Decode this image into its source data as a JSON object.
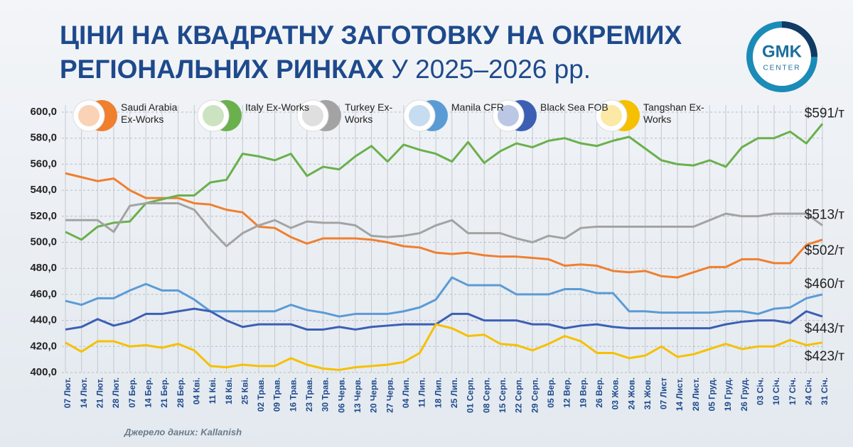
{
  "chart_data": {
    "type": "line",
    "title": "ЦІНИ НА КВАДРАТНУ ЗАГОТОВКУ НА ОКРЕМИХ РЕГІОНАЛЬНИХ РИНКАХ",
    "subtitle": "У 2025–2026 рр.",
    "source": "Джерело даних: Kallanish",
    "logo": {
      "top": "GMK",
      "bottom": "CENTER"
    },
    "categories": [
      "07 Лют.",
      "14 Лют.",
      "21 Лют.",
      "28 Лют.",
      "07 Бер.",
      "14 Бер.",
      "21 Бер.",
      "28 Бер.",
      "04 Кві.",
      "11 Кві.",
      "18 Кві.",
      "25 Кві.",
      "02 Трав.",
      "09 Трав.",
      "16 Трав.",
      "23 Трав.",
      "30 Трав.",
      "06 Черв.",
      "13 Черв.",
      "20 Черв.",
      "27 Черв.",
      "04 Лип.",
      "11 Лип.",
      "18 Лип.",
      "25 Лип.",
      "01 Серп.",
      "08 Серп.",
      "15 Серп.",
      "22 Серп.",
      "29 Серп.",
      "05 Вер.",
      "12 Вер.",
      "19 Вер.",
      "26 Вер.",
      "03 Жов.",
      "24 Жов.",
      "31 Жов.",
      "07 Лист",
      "14 Лист.",
      "28 Лист.",
      "05 Груд.",
      "19 Груд.",
      "26 Груд.",
      "03 Січ.",
      "10 Січ.",
      "17 Січ.",
      "24 Січ.",
      "31 Січ."
    ],
    "ylim": [
      400,
      600
    ],
    "yticks": [
      {
        "value": 400,
        "label": "400,0"
      },
      {
        "value": 420,
        "label": "420,0"
      },
      {
        "value": 440,
        "label": "440,0"
      },
      {
        "value": 460,
        "label": "460,0"
      },
      {
        "value": 480,
        "label": "480,0"
      },
      {
        "value": 500,
        "label": "500,0"
      },
      {
        "value": 520,
        "label": "520,0"
      },
      {
        "value": 540,
        "label": "540,0"
      },
      {
        "value": 560,
        "label": "560,0"
      },
      {
        "value": 580,
        "label": "580,0"
      },
      {
        "value": 600,
        "label": "600,0"
      }
    ],
    "grid": true,
    "series": [
      {
        "name": "Saudi Arabia Ex-Works",
        "color": "#f07f2e",
        "values": [
          553,
          550,
          547,
          549,
          540,
          534,
          534,
          534,
          530,
          529,
          525,
          523,
          512,
          511,
          504,
          499,
          503,
          503,
          503,
          502,
          500,
          497,
          496,
          492,
          491,
          492,
          490,
          489,
          489,
          488,
          487,
          482,
          483,
          482,
          478,
          477,
          478,
          474,
          473,
          477,
          481,
          481,
          487,
          487,
          484,
          484,
          498,
          502
        ],
        "value_labels": [
          null,
          null,
          null,
          null,
          null,
          null,
          null,
          null,
          null,
          null,
          null,
          null,
          null,
          null,
          null,
          null,
          null,
          null,
          null,
          null,
          null,
          null,
          null,
          null,
          null,
          null,
          null,
          null,
          null,
          null,
          null,
          null,
          null,
          null,
          null,
          null,
          null,
          null,
          null,
          null,
          null,
          null,
          null,
          null,
          null,
          null,
          null,
          "$502/т"
        ]
      },
      {
        "name": "Italy Ex-Works",
        "color": "#6ab04c",
        "values": [
          508,
          502,
          512,
          515,
          516,
          530,
          533,
          536,
          536,
          546,
          548,
          568,
          566,
          563,
          568,
          551,
          558,
          556,
          566,
          574,
          562,
          575,
          571,
          568,
          562,
          577,
          561,
          570,
          576,
          573,
          578,
          580,
          576,
          574,
          578,
          581,
          572,
          563,
          560,
          559,
          563,
          558,
          573,
          580,
          580,
          585,
          576,
          591
        ],
        "value_labels": [
          null,
          null,
          null,
          null,
          null,
          null,
          null,
          null,
          null,
          null,
          null,
          null,
          null,
          null,
          null,
          null,
          null,
          null,
          null,
          null,
          null,
          null,
          null,
          null,
          null,
          null,
          null,
          null,
          null,
          null,
          null,
          null,
          null,
          null,
          null,
          null,
          null,
          null,
          null,
          null,
          null,
          null,
          null,
          null,
          null,
          null,
          null,
          "$591/т"
        ]
      },
      {
        "name": "Turkey Ex-Works",
        "color": "#a3a3a3",
        "values": [
          517,
          517,
          517,
          508,
          528,
          530,
          530,
          530,
          525,
          510,
          497,
          507,
          513,
          517,
          511,
          516,
          515,
          515,
          513,
          505,
          504,
          505,
          507,
          513,
          517,
          507,
          507,
          507,
          503,
          500,
          505,
          503,
          511,
          512,
          512,
          512,
          512,
          512,
          512,
          512,
          517,
          522,
          520,
          520,
          522,
          522,
          522,
          513
        ],
        "value_labels": [
          null,
          null,
          null,
          null,
          null,
          null,
          null,
          null,
          null,
          null,
          null,
          null,
          null,
          null,
          null,
          null,
          null,
          null,
          null,
          null,
          null,
          null,
          null,
          null,
          null,
          null,
          null,
          null,
          null,
          null,
          null,
          null,
          null,
          null,
          null,
          null,
          null,
          null,
          null,
          null,
          null,
          null,
          null,
          null,
          null,
          null,
          null,
          "$513/т"
        ]
      },
      {
        "name": "Manila CFR",
        "color": "#5b9bd5",
        "values": [
          455,
          452,
          457,
          457,
          463,
          468,
          463,
          463,
          456,
          447,
          447,
          447,
          447,
          447,
          452,
          448,
          446,
          443,
          445,
          445,
          445,
          447,
          450,
          456,
          473,
          467,
          467,
          467,
          460,
          460,
          460,
          464,
          464,
          461,
          461,
          447,
          447,
          446,
          446,
          446,
          446,
          447,
          447,
          445,
          449,
          450,
          457,
          460
        ],
        "value_labels": [
          null,
          null,
          null,
          null,
          null,
          null,
          null,
          null,
          null,
          null,
          null,
          null,
          null,
          null,
          null,
          null,
          null,
          null,
          null,
          null,
          null,
          null,
          null,
          null,
          null,
          null,
          null,
          null,
          null,
          null,
          null,
          null,
          null,
          null,
          null,
          null,
          null,
          null,
          null,
          null,
          null,
          null,
          null,
          null,
          null,
          null,
          null,
          "$460/т"
        ]
      },
      {
        "name": "Black Sea FOB",
        "color": "#3c5fb4",
        "values": [
          433,
          435,
          441,
          436,
          439,
          445,
          445,
          447,
          449,
          447,
          440,
          435,
          437,
          437,
          437,
          433,
          433,
          435,
          433,
          435,
          436,
          437,
          437,
          437,
          445,
          445,
          440,
          440,
          440,
          437,
          437,
          434,
          436,
          437,
          435,
          434,
          434,
          434,
          434,
          434,
          434,
          437,
          439,
          440,
          440,
          438,
          447,
          443
        ],
        "value_labels": [
          null,
          null,
          null,
          null,
          null,
          null,
          null,
          null,
          null,
          null,
          null,
          null,
          null,
          null,
          null,
          null,
          null,
          null,
          null,
          null,
          null,
          null,
          null,
          null,
          null,
          null,
          null,
          null,
          null,
          null,
          null,
          null,
          null,
          null,
          null,
          null,
          null,
          null,
          null,
          null,
          null,
          null,
          null,
          null,
          null,
          null,
          null,
          "$443/т"
        ]
      },
      {
        "name": "Tangshan Ex-Works",
        "color": "#f6c000",
        "values": [
          423,
          416,
          424,
          424,
          420,
          421,
          419,
          422,
          417,
          405,
          404,
          406,
          405,
          405,
          411,
          406,
          403,
          402,
          404,
          405,
          406,
          408,
          415,
          437,
          434,
          428,
          429,
          422,
          421,
          417,
          422,
          428,
          424,
          415,
          415,
          411,
          413,
          420,
          412,
          414,
          418,
          422,
          418,
          420,
          420,
          425,
          421,
          423
        ],
        "value_labels": [
          null,
          null,
          null,
          null,
          null,
          null,
          null,
          null,
          null,
          null,
          null,
          null,
          null,
          null,
          null,
          null,
          null,
          null,
          null,
          null,
          null,
          null,
          null,
          null,
          null,
          null,
          null,
          null,
          null,
          null,
          null,
          null,
          null,
          null,
          null,
          null,
          null,
          null,
          null,
          null,
          null,
          null,
          null,
          null,
          null,
          null,
          null,
          "$423/т"
        ]
      }
    ]
  }
}
